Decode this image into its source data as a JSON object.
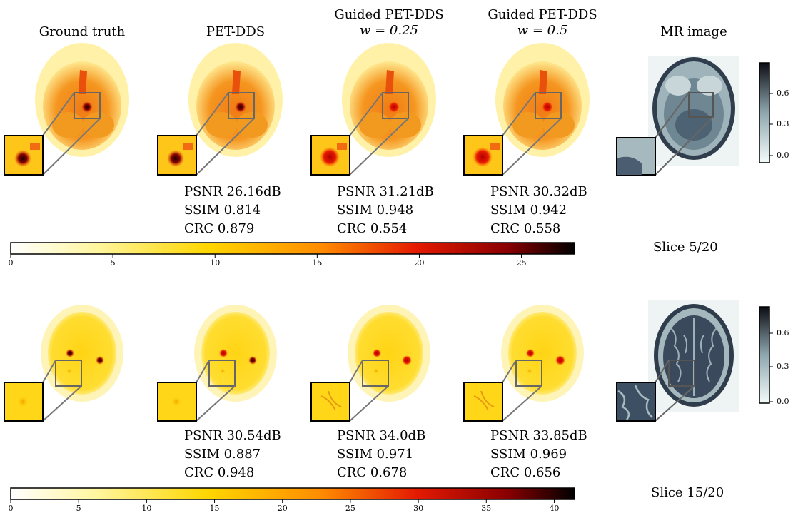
{
  "columns": [
    {
      "line1": "Ground truth",
      "line2": ""
    },
    {
      "line1": "PET-DDS",
      "line2": ""
    },
    {
      "line1": "Guided PET-DDS",
      "line2": "w = 0.25"
    },
    {
      "line1": "Guided PET-DDS",
      "line2": "w = 0.5"
    },
    {
      "line1": "MR image",
      "line2": ""
    }
  ],
  "rows": [
    {
      "slice": "Slice 5/20",
      "metrics": [
        {
          "psnr": "PSNR 26.16dB",
          "ssim": "SSIM 0.814",
          "crc": "CRC 0.879"
        },
        {
          "psnr": "PSNR 31.21dB",
          "ssim": "SSIM 0.948",
          "crc": "CRC 0.554"
        },
        {
          "psnr": "PSNR 30.32dB",
          "ssim": "SSIM 0.942",
          "crc": "CRC 0.558"
        }
      ],
      "colorbar_ticks": [
        "0",
        "5",
        "10",
        "15",
        "20",
        "25"
      ],
      "colorbar_max": 27.6,
      "mr_ticks": [
        "0.6",
        "0.3",
        "0.0"
      ]
    },
    {
      "slice": "Slice 15/20",
      "metrics": [
        {
          "psnr": "PSNR 30.54dB",
          "ssim": "SSIM 0.887",
          "crc": "CRC 0.948"
        },
        {
          "psnr": "PSNR 34.0dB",
          "ssim": "SSIM 0.971",
          "crc": "CRC 0.678"
        },
        {
          "psnr": "PSNR 33.85dB",
          "ssim": "SSIM 0.969",
          "crc": "CRC 0.656"
        }
      ],
      "colorbar_ticks": [
        "0",
        "5",
        "10",
        "15",
        "20",
        "25",
        "30",
        "35",
        "40"
      ],
      "colorbar_max": 41.5,
      "mr_ticks": [
        "0.6",
        "0.3",
        "0.0"
      ]
    }
  ],
  "colors": {
    "pet_bg": "#fff3a0",
    "pet_body": "#ffd21a",
    "pet_hot": "#e8400c",
    "pet_lesion": "#3a0000",
    "mr_bg": "#eef3f3",
    "mr_tissue": "#7f97a2",
    "mr_dark": "#2a3547",
    "zoom_line": "#777777"
  }
}
